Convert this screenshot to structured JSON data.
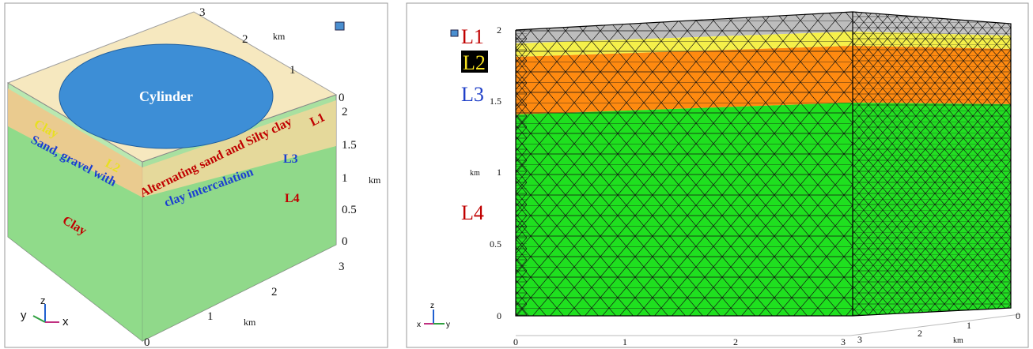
{
  "left_panel": {
    "labels": {
      "cylinder": "Cylinder",
      "clay_top": "Clay",
      "sand_gravel": "Sand, gravel with",
      "l2": "L2",
      "alternating": "Alternating sand and Silty clay",
      "l1": "L1",
      "clay_intercalation": "clay intercalation",
      "l3": "L3",
      "l4": "L4",
      "clay_bottom": "Clay"
    },
    "top_axis": {
      "ticks": [
        "3",
        "2",
        "1",
        "0"
      ],
      "unit": "km"
    },
    "vertical_axis": {
      "ticks": [
        "2",
        "1.5",
        "1",
        "0.5",
        "0"
      ],
      "unit": "km"
    },
    "bottom_axis": {
      "ticks": [
        "3",
        "2",
        "1",
        "0"
      ],
      "unit": "km"
    },
    "triad": {
      "z": "z",
      "y": "y",
      "x": "x"
    }
  },
  "right_panel": {
    "labels": {
      "l1": "L1",
      "l2": "L2",
      "l3": "L3",
      "l4": "L4"
    },
    "vertical_axis": {
      "ticks": [
        "2",
        "1.5",
        "1",
        "0.5",
        "0"
      ],
      "unit": "km"
    },
    "front_axis": {
      "ticks": [
        "0",
        "1",
        "2",
        "3"
      ]
    },
    "depth_axis": {
      "ticks": [
        "3",
        "2",
        "1",
        "0"
      ],
      "unit": "km"
    },
    "triad": {
      "z": "z",
      "x": "x",
      "y": "y"
    }
  }
}
